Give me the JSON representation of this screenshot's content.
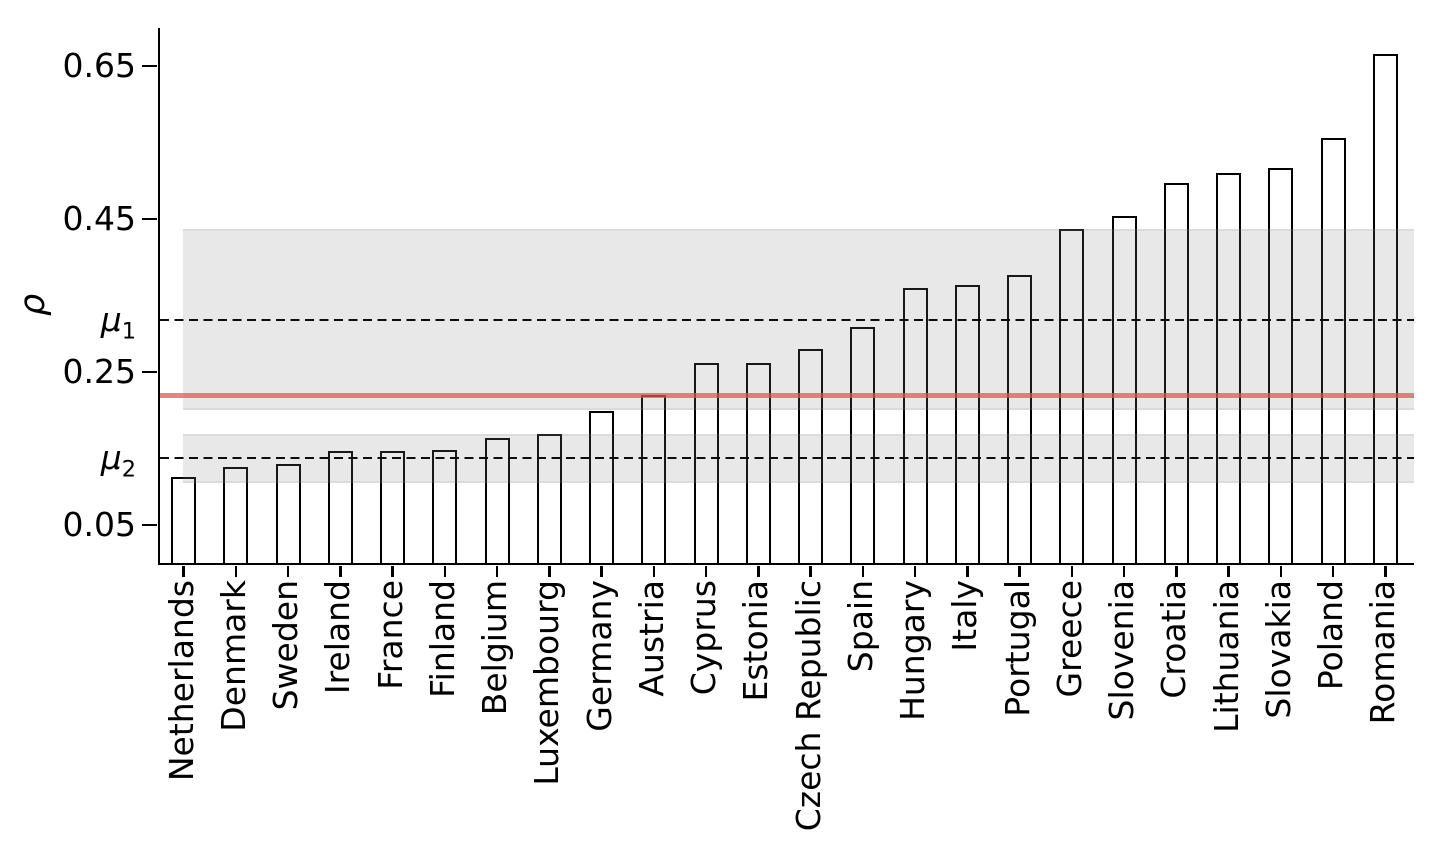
{
  "chart_data": {
    "type": "bar",
    "title": "",
    "xlabel": "",
    "ylabel": "ρ",
    "categories": [
      "Netherlands",
      "Denmark",
      "Sweden",
      "Ireland",
      "France",
      "Finland",
      "Belgium",
      "Luxembourg",
      "Germany",
      "Austria",
      "Cyprus",
      "Estonia",
      "Czech Republic",
      "Spain",
      "Hungary",
      "Italy",
      "Portugal",
      "Greece",
      "Slovenia",
      "Croatia",
      "Lithuania",
      "Slovakia",
      "Poland",
      "Romania"
    ],
    "values": [
      0.113,
      0.126,
      0.13,
      0.147,
      0.146,
      0.148,
      0.163,
      0.168,
      0.199,
      0.219,
      0.261,
      0.262,
      0.28,
      0.308,
      0.359,
      0.364,
      0.376,
      0.436,
      0.454,
      0.497,
      0.51,
      0.516,
      0.556,
      0.665
    ],
    "ylim": [
      0,
      0.699
    ],
    "yticks": {
      "values": [
        0.65,
        0.45,
        0.25,
        0.05
      ],
      "labels": [
        "0.65",
        "0.45",
        "0.25",
        "0.05"
      ]
    },
    "reference_lines": [
      {
        "id": "mu1",
        "symbol": "μ",
        "subscript": "1",
        "value": 0.318,
        "style": "dashed",
        "color": "#000000"
      },
      {
        "id": "mu2",
        "symbol": "μ",
        "subscript": "2",
        "value": 0.137,
        "style": "dashed",
        "color": "#000000"
      },
      {
        "id": "mean-line",
        "symbol": "",
        "subscript": "",
        "value": 0.219,
        "style": "solid",
        "color": "#cd5c5c"
      }
    ],
    "bands": [
      {
        "from": 0.2,
        "to": 0.436
      },
      {
        "from": 0.105,
        "to": 0.169
      }
    ],
    "bar_fill": "#ffffff",
    "bar_edge": "#000000",
    "band_color": "#e8e8e8",
    "grid": false,
    "legend": "none"
  }
}
